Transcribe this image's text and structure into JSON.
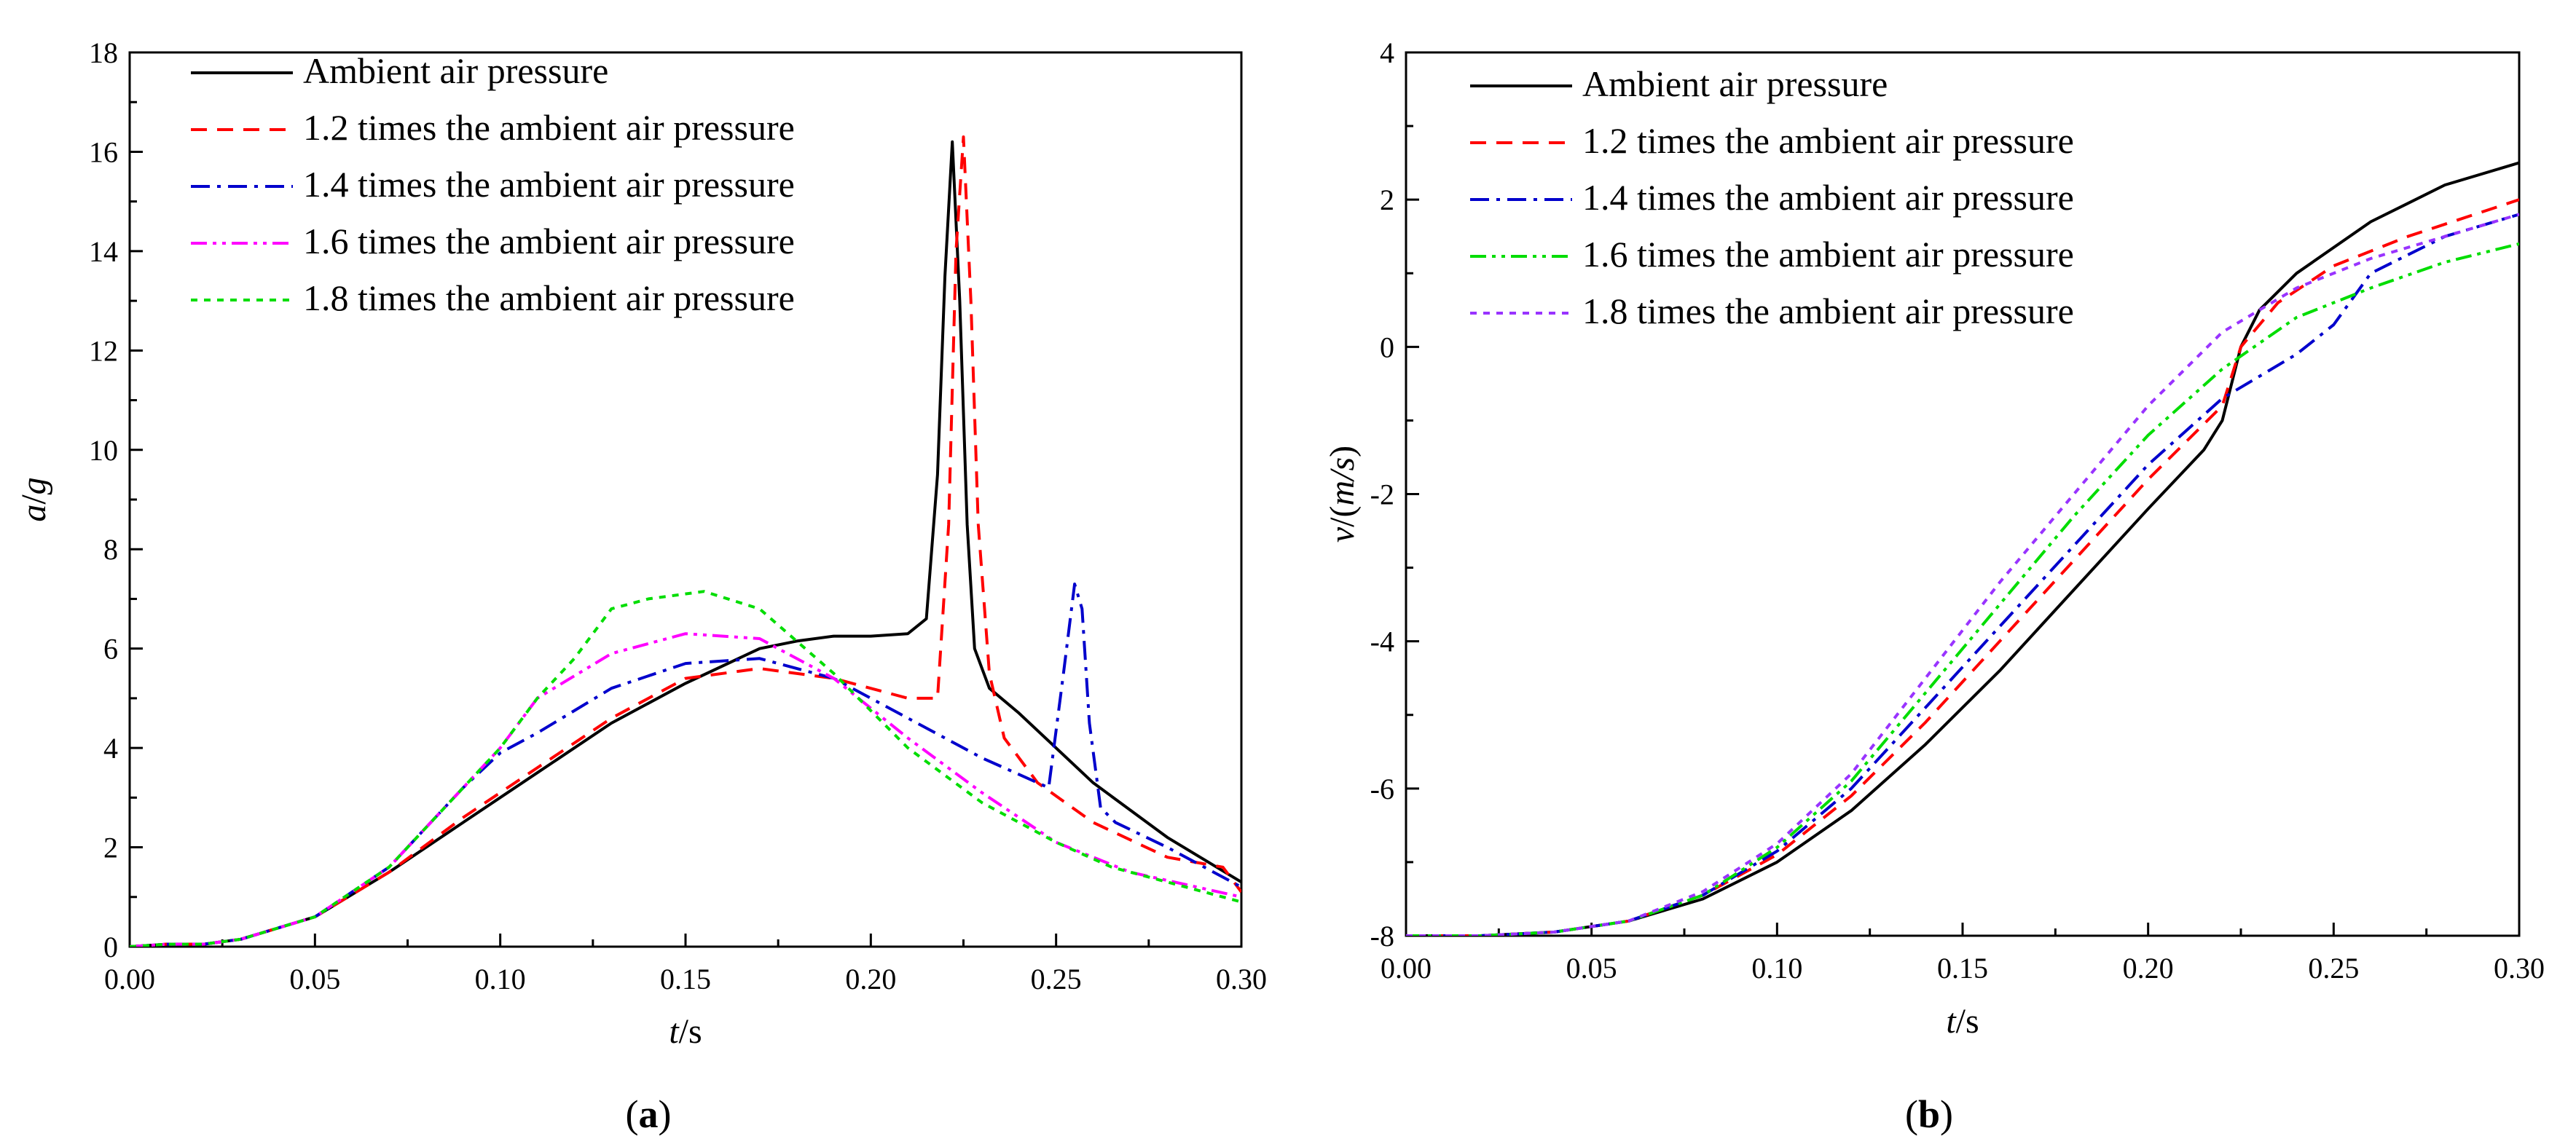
{
  "figure": {
    "panel_labels": [
      "a",
      "b"
    ]
  },
  "colors": {
    "ambient": "#000000",
    "p12": "#ff0000",
    "p14": "#0000cc",
    "p16": "#ff00ff",
    "p16_b": "#00dd00",
    "p18": "#00dd00",
    "p18_b": "#9933ff"
  },
  "chart_data": [
    {
      "type": "line",
      "panel": "a",
      "title": "",
      "xlabel_italic": "t",
      "xlabel_rest": "/s",
      "ylabel_italic": "a",
      "ylabel_rest": "/",
      "ylabel_italic2": "g",
      "xlim": [
        0,
        0.3
      ],
      "ylim": [
        0,
        18
      ],
      "xticks": [
        "0.00",
        "0.05",
        "0.10",
        "0.15",
        "0.20",
        "0.25",
        "0.30"
      ],
      "xtick_values": [
        0,
        0.05,
        0.1,
        0.15,
        0.2,
        0.25,
        0.3
      ],
      "yticks": [
        "0",
        "2",
        "4",
        "6",
        "8",
        "10",
        "12",
        "14",
        "16",
        "18"
      ],
      "ytick_values": [
        0,
        2,
        4,
        6,
        8,
        10,
        12,
        14,
        16,
        18
      ],
      "legend_position": "top-left",
      "series": [
        {
          "name": "Ambient air pressure",
          "color": "#000000",
          "dash": "solid",
          "x": [
            0,
            0.01,
            0.02,
            0.03,
            0.05,
            0.07,
            0.09,
            0.11,
            0.13,
            0.15,
            0.17,
            0.18,
            0.19,
            0.2,
            0.21,
            0.215,
            0.218,
            0.22,
            0.222,
            0.224,
            0.226,
            0.228,
            0.232,
            0.24,
            0.26,
            0.28,
            0.3
          ],
          "y": [
            0,
            0.05,
            0.05,
            0.15,
            0.6,
            1.5,
            2.5,
            3.5,
            4.5,
            5.3,
            6.0,
            6.15,
            6.25,
            6.25,
            6.3,
            6.6,
            9.5,
            13.5,
            16.2,
            13,
            8.5,
            6.0,
            5.2,
            4.7,
            3.3,
            2.2,
            1.3
          ]
        },
        {
          "name": "1.2 times the ambient air pressure",
          "color": "#ff0000",
          "dash": "dashed",
          "x": [
            0,
            0.01,
            0.02,
            0.03,
            0.05,
            0.07,
            0.09,
            0.11,
            0.13,
            0.15,
            0.17,
            0.19,
            0.21,
            0.218,
            0.221,
            0.223,
            0.225,
            0.227,
            0.229,
            0.232,
            0.236,
            0.245,
            0.26,
            0.28,
            0.295,
            0.3
          ],
          "y": [
            0,
            0.05,
            0.05,
            0.15,
            0.6,
            1.5,
            2.6,
            3.6,
            4.6,
            5.4,
            5.6,
            5.4,
            5.0,
            5.0,
            8.5,
            14.0,
            16.3,
            13,
            8.5,
            5.5,
            4.2,
            3.3,
            2.5,
            1.8,
            1.6,
            1.1
          ]
        },
        {
          "name": "1.4 times the ambient air pressure",
          "color": "#0000cc",
          "dash": "dashdot",
          "x": [
            0,
            0.01,
            0.02,
            0.03,
            0.05,
            0.07,
            0.09,
            0.1,
            0.11,
            0.13,
            0.15,
            0.17,
            0.19,
            0.21,
            0.23,
            0.248,
            0.252,
            0.255,
            0.257,
            0.259,
            0.262,
            0.266,
            0.28,
            0.3
          ],
          "y": [
            0,
            0.05,
            0.05,
            0.15,
            0.6,
            1.6,
            3.2,
            3.9,
            4.3,
            5.2,
            5.7,
            5.8,
            5.4,
            4.6,
            3.8,
            3.2,
            5.5,
            7.3,
            6.8,
            4.5,
            2.8,
            2.5,
            2.0,
            1.2
          ]
        },
        {
          "name": "1.6 times the ambient air pressure",
          "color": "#ff00ff",
          "dash": "dashdotdot",
          "x": [
            0,
            0.01,
            0.02,
            0.03,
            0.05,
            0.07,
            0.09,
            0.1,
            0.11,
            0.13,
            0.15,
            0.17,
            0.19,
            0.21,
            0.23,
            0.25,
            0.27,
            0.3
          ],
          "y": [
            0,
            0.05,
            0.05,
            0.15,
            0.6,
            1.6,
            3.2,
            4.0,
            5.0,
            5.9,
            6.3,
            6.2,
            5.4,
            4.2,
            3.1,
            2.1,
            1.5,
            1.0
          ]
        },
        {
          "name": "1.8 times the ambient air pressure",
          "color": "#00dd00",
          "dash": "dotted",
          "x": [
            0,
            0.01,
            0.02,
            0.03,
            0.05,
            0.07,
            0.09,
            0.1,
            0.11,
            0.12,
            0.13,
            0.14,
            0.155,
            0.17,
            0.19,
            0.21,
            0.23,
            0.25,
            0.265,
            0.28,
            0.3
          ],
          "y": [
            0,
            0.05,
            0.05,
            0.15,
            0.6,
            1.6,
            3.2,
            4.0,
            5.0,
            5.8,
            6.8,
            7.0,
            7.15,
            6.8,
            5.5,
            4.0,
            2.9,
            2.1,
            1.6,
            1.3,
            0.9
          ]
        }
      ]
    },
    {
      "type": "line",
      "panel": "b",
      "title": "",
      "xlabel_italic": "t",
      "xlabel_rest": "/s",
      "ylabel_italic": "v",
      "ylabel_rest": "/(",
      "ylabel_italic2": "m/s",
      "ylabel_rest2": ")",
      "xlim": [
        0,
        0.3
      ],
      "ylim": [
        -8,
        4
      ],
      "xticks": [
        "0.00",
        "0.05",
        "0.10",
        "0.15",
        "0.20",
        "0.25",
        "0.30"
      ],
      "xtick_values": [
        0,
        0.05,
        0.1,
        0.15,
        0.2,
        0.25,
        0.3
      ],
      "yticks": [
        "-8",
        "-6",
        "-4",
        "-2",
        "0",
        "2",
        "4"
      ],
      "ytick_values": [
        -8,
        -6,
        -4,
        -2,
        0,
        2,
        4
      ],
      "legend_position": "top-left",
      "series": [
        {
          "name": "Ambient air pressure",
          "color": "#000000",
          "dash": "solid",
          "x": [
            0,
            0.02,
            0.04,
            0.06,
            0.08,
            0.1,
            0.12,
            0.14,
            0.16,
            0.18,
            0.2,
            0.215,
            0.22,
            0.225,
            0.23,
            0.24,
            0.26,
            0.28,
            0.3
          ],
          "y": [
            -8,
            -8,
            -7.95,
            -7.8,
            -7.5,
            -7.0,
            -6.3,
            -5.4,
            -4.4,
            -3.3,
            -2.2,
            -1.4,
            -1.0,
            0.0,
            0.5,
            1.0,
            1.7,
            2.2,
            2.5
          ]
        },
        {
          "name": "1.2 times the ambient air pressure",
          "color": "#ff0000",
          "dash": "dashed",
          "x": [
            0,
            0.02,
            0.04,
            0.06,
            0.08,
            0.1,
            0.12,
            0.14,
            0.16,
            0.18,
            0.2,
            0.22,
            0.225,
            0.235,
            0.25,
            0.27,
            0.3
          ],
          "y": [
            -8,
            -8,
            -7.95,
            -7.8,
            -7.45,
            -6.9,
            -6.1,
            -5.1,
            -4.0,
            -2.9,
            -1.8,
            -0.8,
            0.0,
            0.6,
            1.1,
            1.5,
            2.0
          ]
        },
        {
          "name": "1.4 times the ambient air pressure",
          "color": "#0000cc",
          "dash": "dashdot",
          "x": [
            0,
            0.02,
            0.04,
            0.06,
            0.08,
            0.1,
            0.12,
            0.14,
            0.16,
            0.18,
            0.2,
            0.22,
            0.24,
            0.25,
            0.26,
            0.28,
            0.3
          ],
          "y": [
            -8,
            -8,
            -7.95,
            -7.8,
            -7.45,
            -6.85,
            -6.0,
            -4.9,
            -3.8,
            -2.7,
            -1.6,
            -0.7,
            -0.1,
            0.3,
            1.0,
            1.5,
            1.8
          ]
        },
        {
          "name": "1.6 times the ambient air pressure",
          "color": "#00dd00",
          "dash": "dashdotdot",
          "x": [
            0,
            0.02,
            0.04,
            0.06,
            0.08,
            0.1,
            0.12,
            0.14,
            0.16,
            0.18,
            0.2,
            0.22,
            0.24,
            0.26,
            0.28,
            0.3
          ],
          "y": [
            -8,
            -8,
            -7.95,
            -7.8,
            -7.45,
            -6.8,
            -5.9,
            -4.7,
            -3.5,
            -2.3,
            -1.2,
            -0.3,
            0.4,
            0.8,
            1.15,
            1.4
          ]
        },
        {
          "name": "1.8 times the ambient air pressure",
          "color": "#9933ff",
          "dash": "dotted",
          "x": [
            0,
            0.02,
            0.04,
            0.06,
            0.08,
            0.1,
            0.12,
            0.14,
            0.16,
            0.18,
            0.2,
            0.22,
            0.24,
            0.26,
            0.28,
            0.3
          ],
          "y": [
            -8,
            -8,
            -7.95,
            -7.8,
            -7.4,
            -6.75,
            -5.8,
            -4.5,
            -3.2,
            -2.0,
            -0.8,
            0.2,
            0.8,
            1.2,
            1.5,
            1.8
          ]
        }
      ]
    }
  ]
}
